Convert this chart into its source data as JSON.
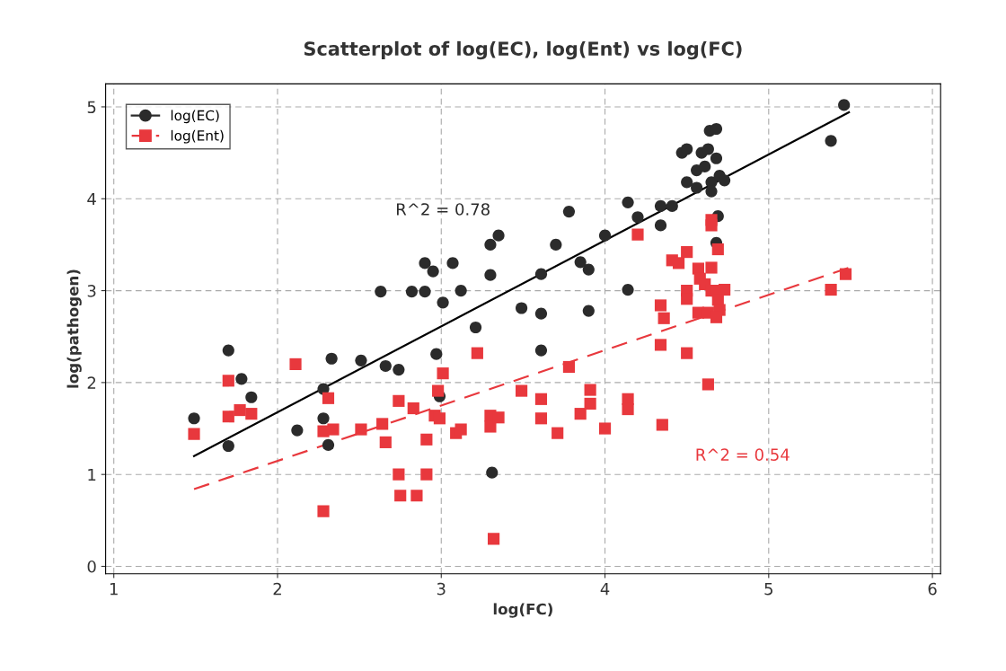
{
  "chart_data": {
    "type": "scatter",
    "title": "Scatterplot of log(EC), log(Ent) vs log(FC)",
    "xlabel": "log(FC)",
    "ylabel": "log(pathogen)",
    "xlim": [
      0.95,
      6.05
    ],
    "ylim": [
      -0.08,
      5.25
    ],
    "xticks": [
      1,
      2,
      3,
      4,
      5,
      6
    ],
    "yticks": [
      0,
      1,
      2,
      3,
      4,
      5
    ],
    "grid": true,
    "legend": "top left",
    "annotations": [
      "R^2 = 0.78",
      "R^2 = 0.54"
    ],
    "series": [
      {
        "name": "log(EC)",
        "color": "#2b2b2b",
        "marker": "circle",
        "line_style": "solid",
        "x": [
          1.49,
          1.7,
          1.7,
          1.78,
          1.84,
          2.12,
          2.28,
          2.28,
          2.31,
          2.33,
          2.51,
          2.66,
          2.74,
          2.97,
          2.99,
          2.83,
          2.63,
          2.82,
          2.9,
          2.9,
          2.95,
          3.01,
          3.07,
          3.12,
          3.21,
          3.3,
          3.3,
          3.35,
          3.31,
          3.49,
          3.61,
          3.61,
          3.61,
          3.7,
          3.78,
          3.85,
          3.9,
          3.9,
          4.0,
          4.14,
          4.14,
          4.2,
          4.34,
          4.34,
          4.41,
          4.47,
          4.5,
          4.5,
          4.56,
          4.56,
          4.59,
          4.63,
          4.64,
          4.68,
          4.68,
          4.61,
          4.65,
          4.7,
          4.73,
          4.65,
          4.69,
          4.68,
          5.38,
          5.46
        ],
        "values": [
          1.61,
          2.35,
          1.31,
          2.04,
          1.84,
          1.48,
          1.93,
          1.61,
          1.32,
          2.26,
          2.24,
          2.18,
          2.14,
          2.31,
          1.85,
          null,
          2.99,
          2.99,
          2.99,
          3.3,
          3.21,
          2.87,
          3.3,
          3.0,
          2.6,
          3.17,
          3.5,
          3.6,
          1.02,
          2.81,
          2.75,
          2.35,
          3.18,
          3.5,
          3.86,
          3.31,
          3.23,
          2.78,
          3.6,
          3.96,
          3.01,
          3.8,
          3.92,
          3.71,
          3.92,
          4.5,
          4.54,
          4.18,
          4.31,
          4.12,
          4.5,
          4.54,
          4.74,
          4.76,
          4.44,
          4.35,
          4.18,
          4.25,
          4.2,
          4.08,
          3.81,
          3.52,
          4.63,
          5.02
        ]
      },
      {
        "name": "log(Ent)",
        "color": "#e8383d",
        "marker": "square",
        "line_style": "dashed",
        "x": [
          1.49,
          1.7,
          1.7,
          1.77,
          1.84,
          2.11,
          2.28,
          2.34,
          2.31,
          2.28,
          2.51,
          2.64,
          2.66,
          2.74,
          2.74,
          2.75,
          2.85,
          2.83,
          2.91,
          2.91,
          2.98,
          3.01,
          2.96,
          2.99,
          3.22,
          3.09,
          3.12,
          3.3,
          3.3,
          3.35,
          3.32,
          3.49,
          3.61,
          3.61,
          3.71,
          3.78,
          3.85,
          3.91,
          3.91,
          4.0,
          4.14,
          4.14,
          4.2,
          4.34,
          4.36,
          4.34,
          4.35,
          4.41,
          4.45,
          4.5,
          4.5,
          4.5,
          4.5,
          4.63,
          4.57,
          4.65,
          4.58,
          4.61,
          4.65,
          4.68,
          4.73,
          4.69,
          4.7,
          4.57,
          4.63,
          4.68,
          4.65,
          4.65,
          4.69,
          5.47,
          5.38
        ],
        "values": [
          1.44,
          2.02,
          1.63,
          1.7,
          1.66,
          2.2,
          1.47,
          1.49,
          1.83,
          0.6,
          1.49,
          1.55,
          1.35,
          1.8,
          1.0,
          0.77,
          0.77,
          1.72,
          1.38,
          1.0,
          1.91,
          2.1,
          1.64,
          1.61,
          2.32,
          1.45,
          1.49,
          1.64,
          1.52,
          1.62,
          0.3,
          1.91,
          1.82,
          1.61,
          1.45,
          2.17,
          1.66,
          1.92,
          1.77,
          1.5,
          1.82,
          1.71,
          3.61,
          2.84,
          2.7,
          2.41,
          1.54,
          3.33,
          3.3,
          3.42,
          3.0,
          2.91,
          2.32,
          1.98,
          3.24,
          3.25,
          3.13,
          3.07,
          3.0,
          3.0,
          3.01,
          2.9,
          2.79,
          2.76,
          2.76,
          2.71,
          3.77,
          3.71,
          3.45,
          3.18,
          3.01
        ]
      },
      {
        "type": "line",
        "color": "#000000",
        "line_style": "solid",
        "x": [
          1.49,
          5.49
        ],
        "values": [
          1.2,
          4.94
        ]
      },
      {
        "type": "line",
        "color": "#e8383d",
        "line_style": "dashed",
        "x": [
          1.49,
          5.49
        ],
        "values": [
          0.84,
          3.25
        ]
      }
    ]
  }
}
